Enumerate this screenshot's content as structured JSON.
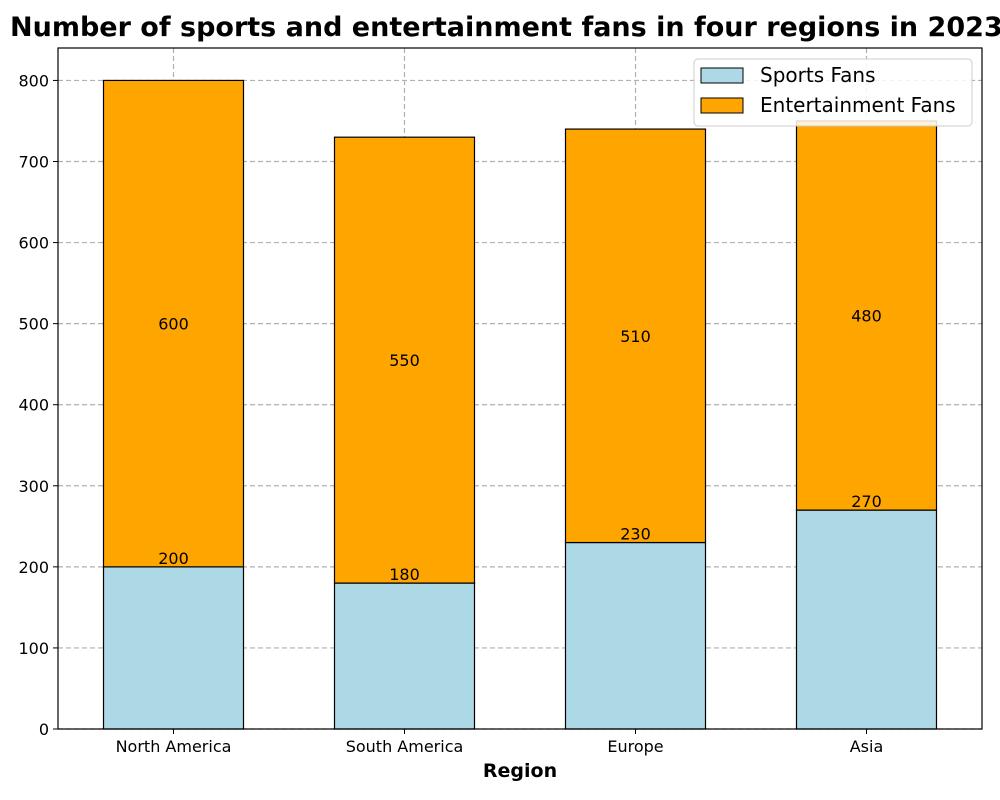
{
  "chart_data": {
    "type": "bar",
    "stacked": true,
    "title": "Number of sports and entertainment fans in four regions in 2023",
    "xlabel": "Region",
    "ylabel": "",
    "categories": [
      "North America",
      "South America",
      "Europe",
      "Asia"
    ],
    "series": [
      {
        "name": "Sports Fans",
        "values": [
          200,
          180,
          230,
          270
        ],
        "color": "#add8e6"
      },
      {
        "name": "Entertainment Fans",
        "values": [
          600,
          550,
          510,
          480
        ],
        "color": "#ffa500"
      }
    ],
    "ylim": [
      0,
      840
    ],
    "yticks": [
      0,
      100,
      200,
      300,
      400,
      500,
      600,
      700,
      800
    ],
    "grid": true,
    "legend_position": "top-right"
  }
}
